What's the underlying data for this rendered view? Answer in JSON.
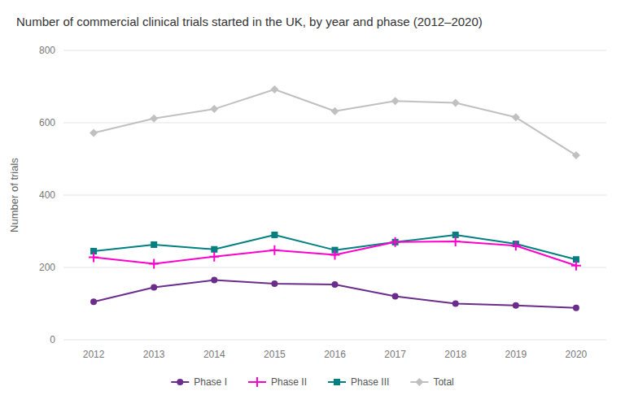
{
  "chart_data": {
    "type": "line",
    "title": "Number of commercial clinical trials started in the UK, by year and phase (2012–2020)",
    "ylabel": "Number of trials",
    "categories": [
      "2012",
      "2013",
      "2014",
      "2015",
      "2016",
      "2017",
      "2018",
      "2019",
      "2020"
    ],
    "series": [
      {
        "name": "Phase I",
        "color": "#6b2d8b",
        "marker": "circle",
        "values": [
          105,
          145,
          165,
          155,
          153,
          120,
          100,
          95,
          88
        ]
      },
      {
        "name": "Phase II",
        "color": "#ff00cc",
        "marker": "plus",
        "values": [
          228,
          210,
          230,
          248,
          235,
          270,
          272,
          260,
          205
        ]
      },
      {
        "name": "Phase III",
        "color": "#008080",
        "marker": "square",
        "values": [
          245,
          263,
          250,
          290,
          248,
          270,
          290,
          265,
          222
        ]
      },
      {
        "name": "Total",
        "color": "#c0c0c0",
        "marker": "diamond",
        "values": [
          572,
          612,
          638,
          692,
          632,
          660,
          655,
          615,
          510
        ]
      }
    ],
    "ylim": [
      0,
      800
    ],
    "yticks": [
      0,
      200,
      400,
      600,
      800
    ],
    "grid": true,
    "legend": "bottom"
  }
}
